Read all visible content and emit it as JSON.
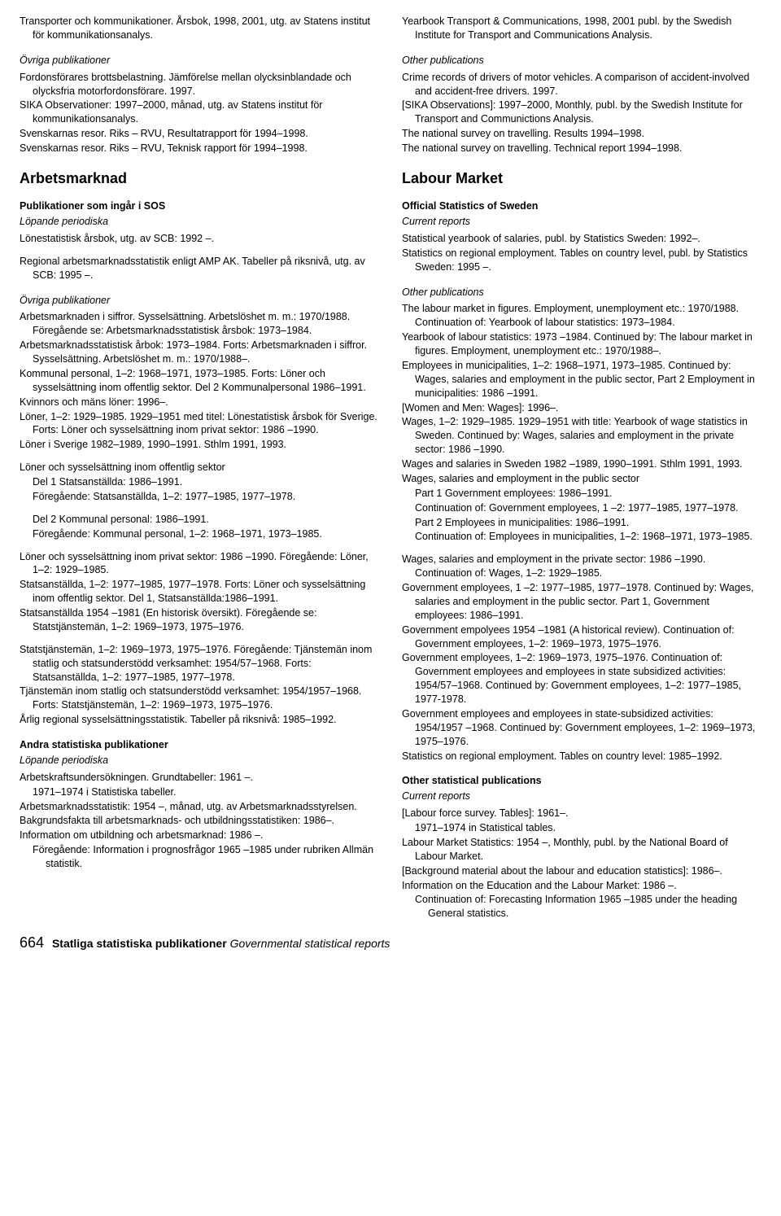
{
  "left": {
    "top1": "Transporter och kommunikationer. Årsbok, 1998, 2001, utg. av Statens institut för kommunikationsanalys.",
    "ovriga1_title": "Övriga publikationer",
    "ovriga1": [
      "Fordonsförares brottsbelastning. Jämförelse mellan olycksinblandade och olycksfria motorfordonsförare. 1997.",
      "SIKA Observationer: 1997–2000, månad, utg. av Statens institut för kommunikationsanalys.",
      "Svenskarnas resor. Riks – RVU, Resultatrapport för 1994–1998.",
      "Svenskarnas resor. Riks – RVU, Teknisk rapport för 1994–1998."
    ],
    "arbetsmarknad": "Arbetsmarknad",
    "sos_title": "Publikationer som ingår i SOS",
    "sos_sub": "Löpande periodiska",
    "sos_items": [
      "Lönestatistisk årsbok, utg. av SCB: 1992 –.",
      "Regional arbetsmarknadsstatistik enligt AMP AK. Tabeller på riksnivå, utg. av SCB: 1995 –."
    ],
    "ovriga2_title": "Övriga publikationer",
    "ovriga2": [
      "Arbetsmarknaden i siffror. Sysselsättning. Arbetslöshet m. m.: 1970/1988. Föregående se: Arbetsmarknadsstatistisk årsbok: 1973–1984.",
      "Arbetsmarknadsstatistisk årbok: 1973–1984. Forts: Arbetsmarknaden i siffror. Sysselsättning. Arbetslöshet m. m.: 1970/1988–.",
      "Kommunal personal, 1–2: 1968–1971, 1973–1985. Forts: Löner och sysselsättning inom offentlig sektor. Del 2 Kommunalpersonal 1986–1991.",
      "Kvinnors och mäns löner: 1996–.",
      "Löner, 1–2: 1929–1985. 1929–1951 med titel: Lönestatistisk årsbok för Sverige. Forts: Löner och sysselsättning inom privat sektor: 1986 –1990.",
      "Löner i Sverige 1982–1989, 1990–1991. Sthlm 1991, 1993."
    ],
    "loner_off_title": "Löner och sysselsättning inom offentlig sektor",
    "loner_off_sub": [
      "Del 1 Statsanställda: 1986–1991.",
      "Föregående: Statsanställda, 1–2: 1977–1985, 1977–1978.",
      "Del 2 Kommunal personal: 1986–1991.",
      "Föregående: Kommunal personal, 1–2: 1968–1971, 1973–1985."
    ],
    "ovriga2b": [
      "Löner och sysselsättning inom privat sektor: 1986 –1990. Föregående: Löner, 1–2: 1929–1985.",
      "Statsanställda, 1–2: 1977–1985, 1977–1978. Forts: Löner och sysselsättning inom offentlig sektor. Del 1, Statsanställda:1986–1991.",
      "Statsanställda 1954 –1981 (En historisk översikt). Föregående se: Statstjänstemän, 1–2: 1969–1973, 1975–1976.",
      "Statstjänstemän, 1–2: 1969–1973, 1975–1976. Föregående: Tjänstemän inom statlig och statsunderstödd verksamhet: 1954/57–1968. Forts: Statsanställda, 1–2: 1977–1985, 1977–1978.",
      "Tjänstemän inom statlig och statsunderstödd verksamhet: 1954/1957–1968. Forts: Statstjänstemän, 1–2: 1969–1973, 1975–1976.",
      "Årlig regional sysselsättningsstatistik. Tabeller på riksnivå: 1985–1992."
    ],
    "andra_title": "Andra statistiska publikationer",
    "andra_sub": "Löpande periodiska",
    "andra_items": [
      "Arbetskraftsundersökningen. Grundtabeller: 1961 –.",
      "1971–1974 i Statistiska tabeller.",
      "Arbetsmarknadsstatistik: 1954 –, månad, utg. av Arbetsmarknadsstyrelsen.",
      "Bakgrundsfakta till arbetsmarknads- och utbildningsstatistiken: 1986–.",
      "Information om utbildning och arbetsmarknad: 1986 –.",
      "Föregående: Information i prognosfrågor 1965 –1985 under rubriken Allmän statistik."
    ]
  },
  "right": {
    "top1": "Yearbook Transport & Communications, 1998, 2001 publ. by the Swedish Institute for Transport and Communications Analysis.",
    "other1_title": "Other publications",
    "other1": [
      "Crime records of drivers of motor vehicles. A comparison of accident-involved and accident-free drivers. 1997.",
      "[SIKA Observations]: 1997–2000, Monthly, publ. by the Swedish Institute for Transport and Communictions Analysis.",
      "The national survey on travelling. Results 1994–1998.",
      "The national survey on travelling. Technical report 1994–1998."
    ],
    "labour": "Labour Market",
    "off_title": "Official Statistics of Sweden",
    "off_sub": "Current reports",
    "off_items": [
      "Statistical yearbook of salaries, publ. by Statistics Sweden: 1992–.",
      "Statistics on regional employment. Tables on country level, publ. by Statistics Sweden: 1995 –."
    ],
    "other2_title": "Other publications",
    "other2": [
      "The labour market in figures. Employment, unemployment etc.: 1970/1988. Continuation of: Yearbook of labour statistics: 1973–1984.",
      "Yearbook of labour statistics: 1973 –1984. Continued by: The labour market in figures. Employment, unemployment etc.: 1970/1988–.",
      "Employees in municipalities, 1–2: 1968–1971, 1973–1985. Continued by: Wages, salaries and employment in the public sector, Part 2 Employment in municipalities: 1986 –1991.",
      "[Women and Men: Wages]: 1996–.",
      "Wages, 1–2: 1929–1985. 1929–1951 with title: Yearbook of wage statistics in Sweden. Continued by: Wages, salaries and employment in the private sector: 1986 –1990.",
      "Wages and salaries in Sweden 1982 –1989, 1990–1991. Sthlm 1991, 1993."
    ],
    "wages_pub_title": "Wages, salaries and employment in the public sector",
    "wages_pub_sub": [
      "Part 1 Government employees: 1986–1991.",
      "Continuation of: Government employees, 1 –2: 1977–1985, 1977–1978.",
      "Part 2 Employees in municipalities: 1986–1991.",
      "Continuation of: Employees in municipalities, 1–2: 1968–1971, 1973–1985."
    ],
    "other2b": [
      "Wages, salaries and employment in the private sector: 1986 –1990. Continuation of: Wages, 1–2: 1929–1985.",
      "Government employees, 1 –2: 1977–1985, 1977–1978. Continued by: Wages, salaries and employment in the public sector. Part 1, Government employees: 1986–1991.",
      "Government empolyees 1954 –1981 (A historical review). Continuation of: Government employees, 1–2: 1969–1973, 1975–1976.",
      "Government employees, 1–2: 1969–1973, 1975–1976. Continuation of: Government employees and employees in state subsidized activities: 1954/57–1968. Continued by: Government employees, 1–2: 1977–1985, 1977-1978.",
      "Government employees and employees in state-subsidized activities: 1954/1957 –1968. Continued by: Government employees, 1–2: 1969–1973, 1975–1976.",
      "Statistics on regional employment. Tables on country level: 1985–1992."
    ],
    "otherstat_title": "Other statistical publications",
    "otherstat_sub": "Current reports",
    "otherstat_items": [
      "[Labour force survey. Tables]: 1961–.",
      "1971–1974 in Statistical tables.",
      "Labour Market Statistics: 1954 –, Monthly, publ. by the National Board of Labour Market.",
      "[Background material about the labour and education statistics]: 1986–.",
      "Information on the Education and the Labour Market: 1986 –.",
      "Continuation of: Forecasting Information 1965 –1985 under the heading General statistics."
    ]
  },
  "footer": {
    "page": "664",
    "title_sv": "Statliga statistiska publikationer",
    "title_en": "Governmental statistical reports"
  }
}
